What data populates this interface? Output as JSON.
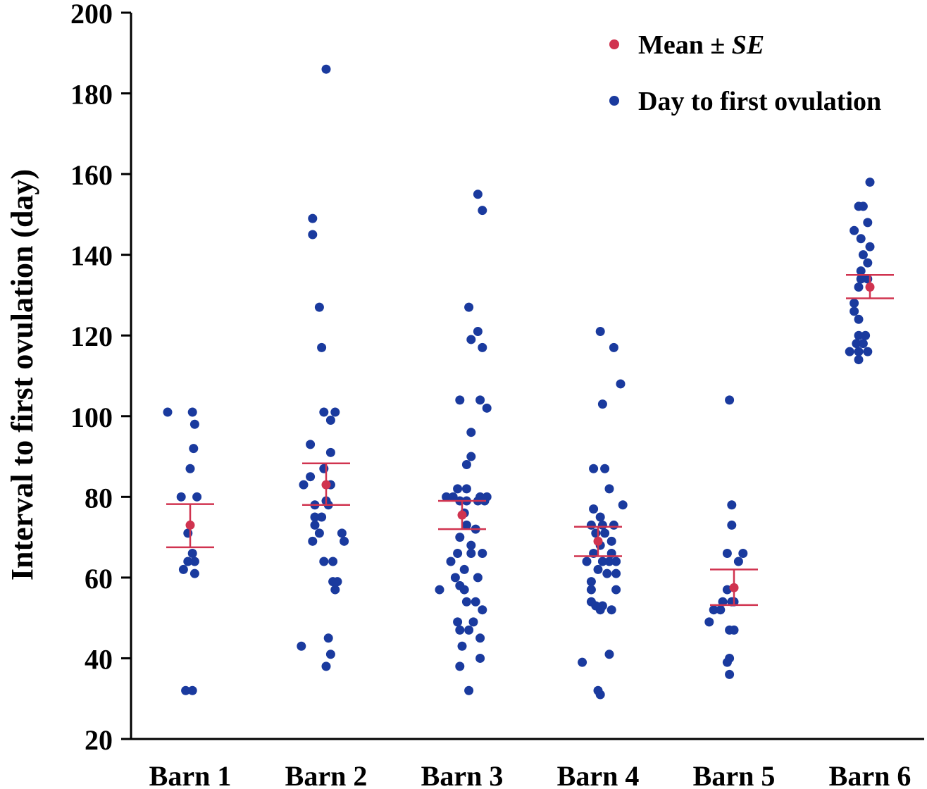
{
  "chart_data": {
    "type": "scatter",
    "title": "",
    "xlabel": "",
    "ylabel": "Interval to first ovulation (day)",
    "ylim": [
      20,
      200
    ],
    "yticks": [
      20,
      40,
      60,
      80,
      100,
      120,
      140,
      160,
      180,
      200
    ],
    "categories": [
      "Barn 1",
      "Barn 2",
      "Barn 3",
      "Barn 4",
      "Barn 5",
      "Barn 6"
    ],
    "legend": {
      "position": "top-right",
      "items": [
        {
          "label": "Mean ± ",
          "label_italic": "SE",
          "color": "#d0334f"
        },
        {
          "label": "Day to first ovulation",
          "label_italic": "",
          "color": "#1a3a9e"
        }
      ]
    },
    "colors": {
      "points": "#1a3a9e",
      "mean": "#d0334f",
      "error": "#d0334f"
    },
    "groups": [
      {
        "category": "Barn 1",
        "mean": 73,
        "se_low": 67.5,
        "se_high": 78.2,
        "points": [
          [
            -0.2,
            101
          ],
          [
            0.02,
            101
          ],
          [
            0.04,
            98
          ],
          [
            0.03,
            92
          ],
          [
            0.0,
            87
          ],
          [
            -0.08,
            80
          ],
          [
            0.06,
            80
          ],
          [
            -0.02,
            71
          ],
          [
            0.02,
            66
          ],
          [
            0.04,
            64
          ],
          [
            -0.02,
            64
          ],
          [
            -0.06,
            62
          ],
          [
            0.04,
            61
          ],
          [
            -0.04,
            32
          ],
          [
            0.02,
            32
          ]
        ]
      },
      {
        "category": "Barn 2",
        "mean": 83,
        "se_low": 78,
        "se_high": 88.3,
        "points": [
          [
            0.0,
            186
          ],
          [
            -0.12,
            149
          ],
          [
            -0.12,
            145
          ],
          [
            -0.06,
            127
          ],
          [
            -0.04,
            117
          ],
          [
            -0.02,
            101
          ],
          [
            0.08,
            101
          ],
          [
            0.04,
            99
          ],
          [
            0.04,
            91
          ],
          [
            -0.14,
            93
          ],
          [
            -0.02,
            87
          ],
          [
            -0.14,
            85
          ],
          [
            -0.2,
            83
          ],
          [
            0.04,
            83
          ],
          [
            0.0,
            79
          ],
          [
            -0.1,
            78
          ],
          [
            0.02,
            78
          ],
          [
            -0.1,
            75
          ],
          [
            -0.04,
            75
          ],
          [
            -0.1,
            73
          ],
          [
            -0.06,
            71
          ],
          [
            0.14,
            71
          ],
          [
            -0.12,
            69
          ],
          [
            0.16,
            69
          ],
          [
            -0.02,
            64
          ],
          [
            0.06,
            64
          ],
          [
            0.06,
            59
          ],
          [
            0.1,
            59
          ],
          [
            0.08,
            57
          ],
          [
            -0.22,
            43
          ],
          [
            0.02,
            45
          ],
          [
            0.04,
            41
          ],
          [
            0.0,
            38
          ]
        ]
      },
      {
        "category": "Barn 3",
        "mean": 75.5,
        "se_low": 72,
        "se_high": 79,
        "points": [
          [
            0.14,
            155
          ],
          [
            0.18,
            151
          ],
          [
            0.06,
            127
          ],
          [
            0.14,
            121
          ],
          [
            0.08,
            119
          ],
          [
            0.18,
            117
          ],
          [
            -0.02,
            104
          ],
          [
            0.16,
            104
          ],
          [
            0.22,
            102
          ],
          [
            0.08,
            96
          ],
          [
            0.08,
            90
          ],
          [
            0.04,
            88
          ],
          [
            -0.04,
            82
          ],
          [
            0.04,
            82
          ],
          [
            -0.14,
            80
          ],
          [
            -0.08,
            80
          ],
          [
            0.16,
            80
          ],
          [
            0.22,
            80
          ],
          [
            -0.02,
            79
          ],
          [
            0.04,
            79
          ],
          [
            0.14,
            79
          ],
          [
            0.2,
            79
          ],
          [
            0.02,
            76
          ],
          [
            0.04,
            73
          ],
          [
            0.12,
            72
          ],
          [
            -0.02,
            70
          ],
          [
            0.08,
            68
          ],
          [
            -0.04,
            66
          ],
          [
            0.08,
            66
          ],
          [
            0.18,
            66
          ],
          [
            -0.1,
            64
          ],
          [
            0.02,
            62
          ],
          [
            -0.06,
            60
          ],
          [
            0.14,
            60
          ],
          [
            -0.02,
            58
          ],
          [
            -0.2,
            57
          ],
          [
            0.02,
            57
          ],
          [
            0.04,
            54
          ],
          [
            0.12,
            54
          ],
          [
            0.18,
            52
          ],
          [
            -0.04,
            49
          ],
          [
            0.1,
            49
          ],
          [
            -0.02,
            47
          ],
          [
            0.06,
            47
          ],
          [
            0.16,
            45
          ],
          [
            0.0,
            43
          ],
          [
            0.16,
            40
          ],
          [
            -0.02,
            38
          ],
          [
            0.06,
            32
          ]
        ]
      },
      {
        "category": "Barn 4",
        "mean": 69,
        "se_low": 65.3,
        "se_high": 72.6,
        "points": [
          [
            0.02,
            121
          ],
          [
            0.14,
            117
          ],
          [
            0.2,
            108
          ],
          [
            0.04,
            103
          ],
          [
            -0.04,
            87
          ],
          [
            0.06,
            87
          ],
          [
            0.1,
            82
          ],
          [
            0.22,
            78
          ],
          [
            -0.04,
            77
          ],
          [
            0.02,
            75
          ],
          [
            -0.06,
            73
          ],
          [
            0.04,
            73
          ],
          [
            0.14,
            73
          ],
          [
            -0.02,
            71
          ],
          [
            0.06,
            71
          ],
          [
            0.12,
            69
          ],
          [
            0.02,
            68
          ],
          [
            -0.04,
            66
          ],
          [
            0.12,
            66
          ],
          [
            -0.1,
            64
          ],
          [
            0.04,
            64
          ],
          [
            0.1,
            64
          ],
          [
            0.16,
            64
          ],
          [
            0.0,
            62
          ],
          [
            0.08,
            61
          ],
          [
            0.16,
            61
          ],
          [
            -0.06,
            59
          ],
          [
            -0.06,
            57
          ],
          [
            0.16,
            57
          ],
          [
            -0.06,
            54
          ],
          [
            -0.02,
            53
          ],
          [
            0.04,
            53
          ],
          [
            0.12,
            52
          ],
          [
            0.02,
            52
          ],
          [
            0.1,
            41
          ],
          [
            -0.14,
            39
          ],
          [
            0.0,
            32
          ],
          [
            0.02,
            31
          ]
        ]
      },
      {
        "category": "Barn 5",
        "mean": 57.5,
        "se_low": 53.2,
        "se_high": 62,
        "points": [
          [
            -0.04,
            104
          ],
          [
            -0.02,
            78
          ],
          [
            -0.02,
            73
          ],
          [
            -0.06,
            66
          ],
          [
            0.08,
            66
          ],
          [
            0.04,
            64
          ],
          [
            -0.06,
            57
          ],
          [
            -0.1,
            54
          ],
          [
            -0.02,
            54
          ],
          [
            0.0,
            54
          ],
          [
            -0.18,
            52
          ],
          [
            -0.12,
            52
          ],
          [
            -0.22,
            49
          ],
          [
            -0.04,
            47
          ],
          [
            0.0,
            47
          ],
          [
            -0.04,
            40
          ],
          [
            -0.06,
            39
          ],
          [
            -0.04,
            36
          ]
        ]
      },
      {
        "category": "Barn 6",
        "mean": 132,
        "se_low": 129.2,
        "se_high": 135,
        "points": [
          [
            0.0,
            158
          ],
          [
            -0.1,
            152
          ],
          [
            -0.06,
            152
          ],
          [
            -0.02,
            148
          ],
          [
            -0.14,
            146
          ],
          [
            -0.08,
            144
          ],
          [
            0.0,
            142
          ],
          [
            -0.06,
            140
          ],
          [
            -0.02,
            138
          ],
          [
            -0.08,
            136
          ],
          [
            -0.08,
            134
          ],
          [
            -0.02,
            134
          ],
          [
            -0.1,
            132
          ],
          [
            -0.14,
            128
          ],
          [
            -0.14,
            126
          ],
          [
            -0.1,
            124
          ],
          [
            -0.1,
            120
          ],
          [
            -0.04,
            120
          ],
          [
            -0.12,
            118
          ],
          [
            -0.06,
            118
          ],
          [
            -0.18,
            116
          ],
          [
            -0.1,
            116
          ],
          [
            -0.02,
            116
          ],
          [
            -0.1,
            114
          ]
        ]
      }
    ]
  }
}
